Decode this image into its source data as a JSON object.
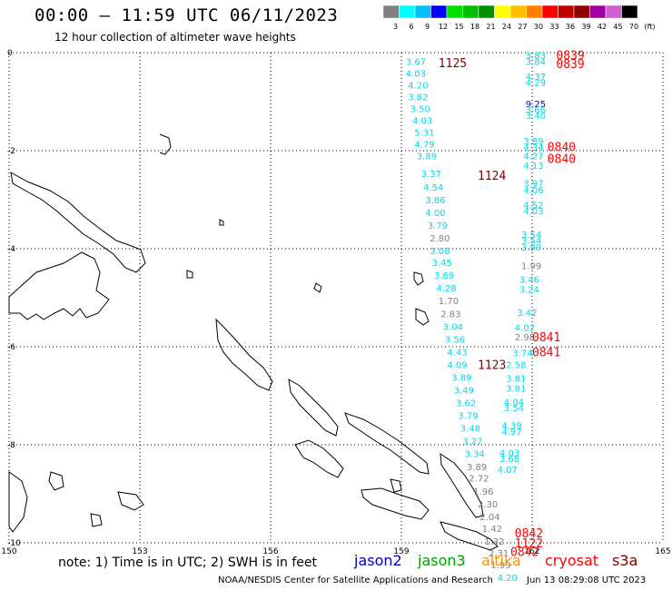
{
  "header": {
    "title": "00:00 — 11:59 UTC 06/11/2023",
    "subtitle": "12 hour collection of altimeter wave heights"
  },
  "colorbar": {
    "labels": [
      "3",
      "6",
      "9",
      "12",
      "15",
      "18",
      "21",
      "24",
      "27",
      "30",
      "33",
      "36",
      "39",
      "42",
      "45",
      "70",
      "(ft)"
    ],
    "colors": [
      "#808080",
      "#00ffff",
      "#00bfff",
      "#0000ff",
      "#00e000",
      "#00c000",
      "#009000",
      "#ffff00",
      "#ffc000",
      "#ff8000",
      "#ff0000",
      "#c00000",
      "#900000",
      "#a000a0",
      "#d060d0",
      "#000000"
    ]
  },
  "axes": {
    "lon_ticks": [
      "150",
      "153",
      "156",
      "159",
      "162",
      "165"
    ],
    "lat_ticks": [
      "0",
      "-2",
      "-4",
      "-6",
      "-8",
      "-10"
    ]
  },
  "observations": [
    {
      "lon": 159.1,
      "lat": -0.18,
      "value": "3.67",
      "color": "#00d8e8"
    },
    {
      "lon": 159.1,
      "lat": -0.42,
      "value": "4.03",
      "color": "#00d8e8"
    },
    {
      "lon": 159.15,
      "lat": -0.66,
      "value": "4.20",
      "color": "#00d8e8"
    },
    {
      "lon": 159.15,
      "lat": -0.9,
      "value": "3.82",
      "color": "#00d8e8"
    },
    {
      "lon": 159.2,
      "lat": -1.14,
      "value": "3.50",
      "color": "#00d8e8"
    },
    {
      "lon": 159.25,
      "lat": -1.38,
      "value": "4.03",
      "color": "#00d8e8"
    },
    {
      "lon": 159.3,
      "lat": -1.62,
      "value": "5.31",
      "color": "#00d8e8"
    },
    {
      "lon": 159.3,
      "lat": -1.86,
      "value": "4.79",
      "color": "#00d8e8"
    },
    {
      "lon": 159.35,
      "lat": -2.1,
      "value": "3.89",
      "color": "#00d8e8"
    },
    {
      "lon": 159.45,
      "lat": -2.46,
      "value": "3.37",
      "color": "#00d8e8"
    },
    {
      "lon": 159.5,
      "lat": -2.74,
      "value": "4.54",
      "color": "#00d8e8"
    },
    {
      "lon": 159.55,
      "lat": -3.0,
      "value": "3.86",
      "color": "#00d8e8"
    },
    {
      "lon": 159.55,
      "lat": -3.26,
      "value": "4.00",
      "color": "#00d8e8"
    },
    {
      "lon": 159.6,
      "lat": -3.52,
      "value": "3.79",
      "color": "#00d8e8"
    },
    {
      "lon": 159.65,
      "lat": -3.78,
      "value": "2.80",
      "color": "#808080"
    },
    {
      "lon": 159.65,
      "lat": -4.04,
      "value": "3.08",
      "color": "#00d8e8"
    },
    {
      "lon": 159.7,
      "lat": -4.28,
      "value": "3.45",
      "color": "#00d8e8"
    },
    {
      "lon": 159.75,
      "lat": -4.54,
      "value": "3.69",
      "color": "#00d8e8"
    },
    {
      "lon": 159.8,
      "lat": -4.8,
      "value": "4.28",
      "color": "#00d8e8"
    },
    {
      "lon": 159.85,
      "lat": -5.06,
      "value": "1.70",
      "color": "#808080"
    },
    {
      "lon": 159.9,
      "lat": -5.32,
      "value": "2.83",
      "color": "#808080"
    },
    {
      "lon": 159.95,
      "lat": -5.58,
      "value": "3.04",
      "color": "#00d8e8"
    },
    {
      "lon": 160.0,
      "lat": -5.84,
      "value": "3.56",
      "color": "#00d8e8"
    },
    {
      "lon": 160.05,
      "lat": -6.1,
      "value": "4.43",
      "color": "#00d8e8"
    },
    {
      "lon": 160.05,
      "lat": -6.36,
      "value": "4.09",
      "color": "#00d8e8"
    },
    {
      "lon": 160.15,
      "lat": -6.62,
      "value": "3.89",
      "color": "#00d8e8"
    },
    {
      "lon": 160.2,
      "lat": -6.88,
      "value": "3.49",
      "color": "#00d8e8"
    },
    {
      "lon": 160.25,
      "lat": -7.14,
      "value": "3.62",
      "color": "#00d8e8"
    },
    {
      "lon": 160.3,
      "lat": -7.4,
      "value": "3.79",
      "color": "#00d8e8"
    },
    {
      "lon": 160.35,
      "lat": -7.66,
      "value": "3.48",
      "color": "#00d8e8"
    },
    {
      "lon": 160.4,
      "lat": -7.92,
      "value": "3.27",
      "color": "#00d8e8"
    },
    {
      "lon": 160.45,
      "lat": -8.18,
      "value": "3.34",
      "color": "#00d8e8"
    },
    {
      "lon": 160.5,
      "lat": -8.44,
      "value": "3.89",
      "color": "#808080"
    },
    {
      "lon": 160.55,
      "lat": -8.68,
      "value": "2.72",
      "color": "#808080"
    },
    {
      "lon": 160.65,
      "lat": -8.94,
      "value": "1.96",
      "color": "#808080"
    },
    {
      "lon": 160.75,
      "lat": -9.2,
      "value": "2.30",
      "color": "#808080"
    },
    {
      "lon": 160.8,
      "lat": -9.46,
      "value": "2.04",
      "color": "#808080"
    },
    {
      "lon": 160.85,
      "lat": -9.7,
      "value": "1.42",
      "color": "#808080"
    },
    {
      "lon": 160.9,
      "lat": -9.96,
      "value": "1.32",
      "color": "#808080"
    },
    {
      "lon": 161.0,
      "lat": -10.2,
      "value": "2.31",
      "color": "#808080"
    },
    {
      "lon": 161.05,
      "lat": -10.44,
      "value": "1.99",
      "color": "#808080"
    },
    {
      "lon": 161.2,
      "lat": -10.7,
      "value": "4.20",
      "color": "#00d8e8"
    },
    {
      "lon": 161.85,
      "lat": -0.05,
      "value": "3.83",
      "color": "#00d8e8"
    },
    {
      "lon": 161.85,
      "lat": -0.18,
      "value": "3.84",
      "color": "#00d8e8"
    },
    {
      "lon": 161.85,
      "lat": -0.48,
      "value": "4.37",
      "color": "#00d8e8"
    },
    {
      "lon": 161.85,
      "lat": -0.6,
      "value": "4.29",
      "color": "#00d8e8"
    },
    {
      "lon": 161.85,
      "lat": -1.04,
      "value": "9.25",
      "color": "#0000e0"
    },
    {
      "lon": 161.85,
      "lat": -1.16,
      "value": "3.66",
      "color": "#00d8e8"
    },
    {
      "lon": 161.85,
      "lat": -1.28,
      "value": "3.40",
      "color": "#00d8e8"
    },
    {
      "lon": 161.8,
      "lat": -1.8,
      "value": "3.89",
      "color": "#00d8e8"
    },
    {
      "lon": 161.8,
      "lat": -1.93,
      "value": "4.34",
      "color": "#00d8e8"
    },
    {
      "lon": 161.8,
      "lat": -2.1,
      "value": "4.27",
      "color": "#00d8e8"
    },
    {
      "lon": 161.8,
      "lat": -2.3,
      "value": "4.13",
      "color": "#00d8e8"
    },
    {
      "lon": 161.8,
      "lat": -2.66,
      "value": "3.97",
      "color": "#00d8e8"
    },
    {
      "lon": 161.8,
      "lat": -2.8,
      "value": "4.06",
      "color": "#00d8e8"
    },
    {
      "lon": 161.8,
      "lat": -3.1,
      "value": "4.52",
      "color": "#00d8e8"
    },
    {
      "lon": 161.8,
      "lat": -3.22,
      "value": "4.03",
      "color": "#00d8e8"
    },
    {
      "lon": 161.75,
      "lat": -3.7,
      "value": "3.54",
      "color": "#00d8e8"
    },
    {
      "lon": 161.75,
      "lat": -3.82,
      "value": "3.54",
      "color": "#00d8e8"
    },
    {
      "lon": 161.75,
      "lat": -3.96,
      "value": "3.99",
      "color": "#00d8e8"
    },
    {
      "lon": 161.75,
      "lat": -4.34,
      "value": "1.99",
      "color": "#808080"
    },
    {
      "lon": 161.7,
      "lat": -4.62,
      "value": "3.46",
      "color": "#00d8e8"
    },
    {
      "lon": 161.7,
      "lat": -4.82,
      "value": "3.24",
      "color": "#00d8e8"
    },
    {
      "lon": 161.65,
      "lat": -5.3,
      "value": "3.42",
      "color": "#00d8e8"
    },
    {
      "lon": 161.6,
      "lat": -5.6,
      "value": "4.02",
      "color": "#00d8e8"
    },
    {
      "lon": 161.6,
      "lat": -5.8,
      "value": "2.98",
      "color": "#808080"
    },
    {
      "lon": 161.55,
      "lat": -6.12,
      "value": "3.74",
      "color": "#00d8e8"
    },
    {
      "lon": 161.4,
      "lat": -6.36,
      "value": "2.58",
      "color": "#00d8e8"
    },
    {
      "lon": 161.4,
      "lat": -6.64,
      "value": "3.81",
      "color": "#00d8e8"
    },
    {
      "lon": 161.4,
      "lat": -6.84,
      "value": "3.81",
      "color": "#00d8e8"
    },
    {
      "lon": 161.35,
      "lat": -7.12,
      "value": "4.04",
      "color": "#00d8e8"
    },
    {
      "lon": 161.35,
      "lat": -7.24,
      "value": "3.54",
      "color": "#00d8e8"
    },
    {
      "lon": 161.3,
      "lat": -7.6,
      "value": "4.39",
      "color": "#00d8e8"
    },
    {
      "lon": 161.3,
      "lat": -7.72,
      "value": "4.97",
      "color": "#00d8e8"
    },
    {
      "lon": 161.25,
      "lat": -8.16,
      "value": "4.03",
      "color": "#00d8e8"
    },
    {
      "lon": 161.25,
      "lat": -8.28,
      "value": "3.68",
      "color": "#00d8e8"
    },
    {
      "lon": 161.2,
      "lat": -8.5,
      "value": "4.07",
      "color": "#00d8e8"
    }
  ],
  "pass_times": [
    {
      "lon": 159.85,
      "lat": -0.2,
      "value": "1125",
      "color": "#800000"
    },
    {
      "lon": 160.75,
      "lat": -2.5,
      "value": "1124",
      "color": "#800000"
    },
    {
      "lon": 160.75,
      "lat": -6.36,
      "value": "1123",
      "color": "#800000"
    },
    {
      "lon": 162.55,
      "lat": -0.05,
      "value": "0839",
      "color": "#ff0000"
    },
    {
      "lon": 162.55,
      "lat": -0.22,
      "value": "0839",
      "color": "#ff0000"
    },
    {
      "lon": 162.35,
      "lat": -1.92,
      "value": "0840",
      "color": "#ff0000"
    },
    {
      "lon": 162.35,
      "lat": -2.16,
      "value": "0840",
      "color": "#ff0000"
    },
    {
      "lon": 162.0,
      "lat": -5.8,
      "value": "0841",
      "color": "#ff0000"
    },
    {
      "lon": 162.0,
      "lat": -6.1,
      "value": "0841",
      "color": "#ff0000"
    },
    {
      "lon": 161.6,
      "lat": -9.8,
      "value": "0842",
      "color": "#ff0000"
    },
    {
      "lon": 161.6,
      "lat": -10.0,
      "value": "1122",
      "color": "#ff0000"
    },
    {
      "lon": 161.5,
      "lat": -10.18,
      "value": "0842",
      "color": "#ff0000"
    }
  ],
  "footer": {
    "note": "note: 1) Time is in UTC; 2) SWH is in feet",
    "legend": [
      {
        "label": "jason2",
        "color": "#0000cc"
      },
      {
        "label": "jason3",
        "color": "#00a000"
      },
      {
        "label": "altika",
        "color": "#ff9000"
      },
      {
        "label": "cryosat",
        "color": "#ff0000"
      },
      {
        "label": "s3a",
        "color": "#800000"
      }
    ],
    "credit": "NOAA/NESDIS Center for Satellite Applications and Research",
    "timestamp": "Jun 13 08:29:08 UTC 2023"
  }
}
